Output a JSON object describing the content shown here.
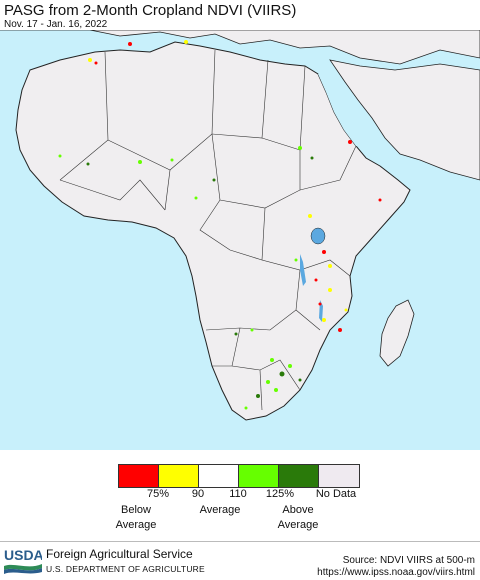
{
  "header": {
    "title": "PASG from 2-Month Cropland NDVI (VIIRS)",
    "date_range": "Nov. 17 - Jan. 16, 2022"
  },
  "map": {
    "region": "Africa",
    "ocean_color": "#c8f0fb",
    "land_color": "#f0eef0",
    "border_color": "#222222"
  },
  "legend": {
    "colors": [
      "#ff0000",
      "#ffff00",
      "#ffffff",
      "#66ff00",
      "#2a7a0a",
      "#efeaf0"
    ],
    "ticks": [
      "75%",
      "90",
      "110",
      "125%",
      "No Data"
    ],
    "labels": {
      "below": "Below\nAverage",
      "average": "Average",
      "above": "Above\nAverage"
    }
  },
  "footer": {
    "logo_text": "USDA",
    "agency": "Foreign Agricultural Service",
    "department": "U.S. DEPARTMENT OF AGRICULTURE",
    "source": "Source: NDVI VIIRS at 500-m",
    "url": "https://www.ipss.noaa.gov/viirs.html"
  }
}
